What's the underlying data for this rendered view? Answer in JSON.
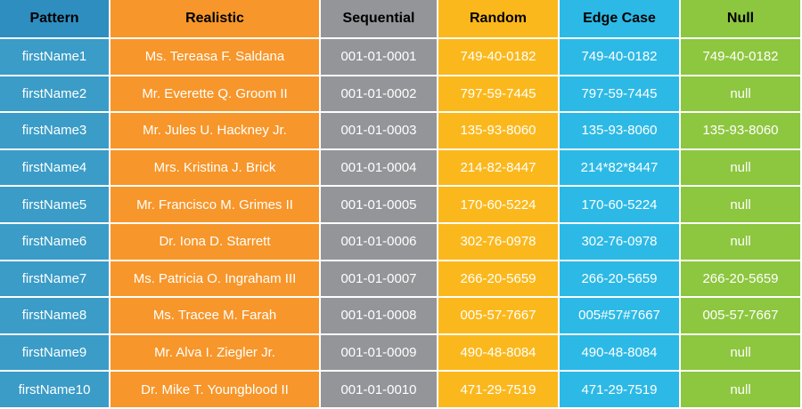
{
  "colors": {
    "pattern": "#3a9cc7",
    "realistic": "#f7962a",
    "sequential": "#939598",
    "random": "#fbb81c",
    "edge_case": "#2cb9e6",
    "null": "#8dc63f"
  },
  "table": {
    "headers": [
      "Pattern",
      "Realistic",
      "Sequential",
      "Random",
      "Edge Case",
      "Null"
    ],
    "rows": [
      [
        "firstName1",
        "Ms. Tereasa F. Saldana",
        "001-01-0001",
        "749-40-0182",
        "749-40-0182",
        "749-40-0182"
      ],
      [
        "firstName2",
        "Mr. Everette Q. Groom II",
        "001-01-0002",
        "797-59-7445",
        "797-59-7445",
        "null"
      ],
      [
        "firstName3",
        "Mr. Jules U. Hackney Jr.",
        "001-01-0003",
        "135-93-8060",
        "135-93-8060",
        "135-93-8060"
      ],
      [
        "firstName4",
        "Mrs. Kristina J. Brick",
        "001-01-0004",
        "214-82-8447",
        "214*82*8447",
        "null"
      ],
      [
        "firstName5",
        "Mr. Francisco M. Grimes II",
        "001-01-0005",
        "170-60-5224",
        "170-60-5224",
        "null"
      ],
      [
        "firstName6",
        "Dr. Iona D. Starrett",
        "001-01-0006",
        "302-76-0978",
        "302-76-0978",
        "null"
      ],
      [
        "firstName7",
        "Ms. Patricia O. Ingraham III",
        "001-01-0007",
        "266-20-5659",
        "266-20-5659",
        "266-20-5659"
      ],
      [
        "firstName8",
        "Ms. Tracee M. Farah",
        "001-01-0008",
        "005-57-7667",
        "005#57#7667",
        "005-57-7667"
      ],
      [
        "firstName9",
        "Mr. Alva I. Ziegler Jr.",
        "001-01-0009",
        "490-48-8084",
        "490-48-8084",
        "null"
      ],
      [
        "firstName10",
        "Dr. Mike T. Youngblood II",
        "001-01-0010",
        "471-29-7519",
        "471-29-7519",
        "null"
      ]
    ]
  }
}
